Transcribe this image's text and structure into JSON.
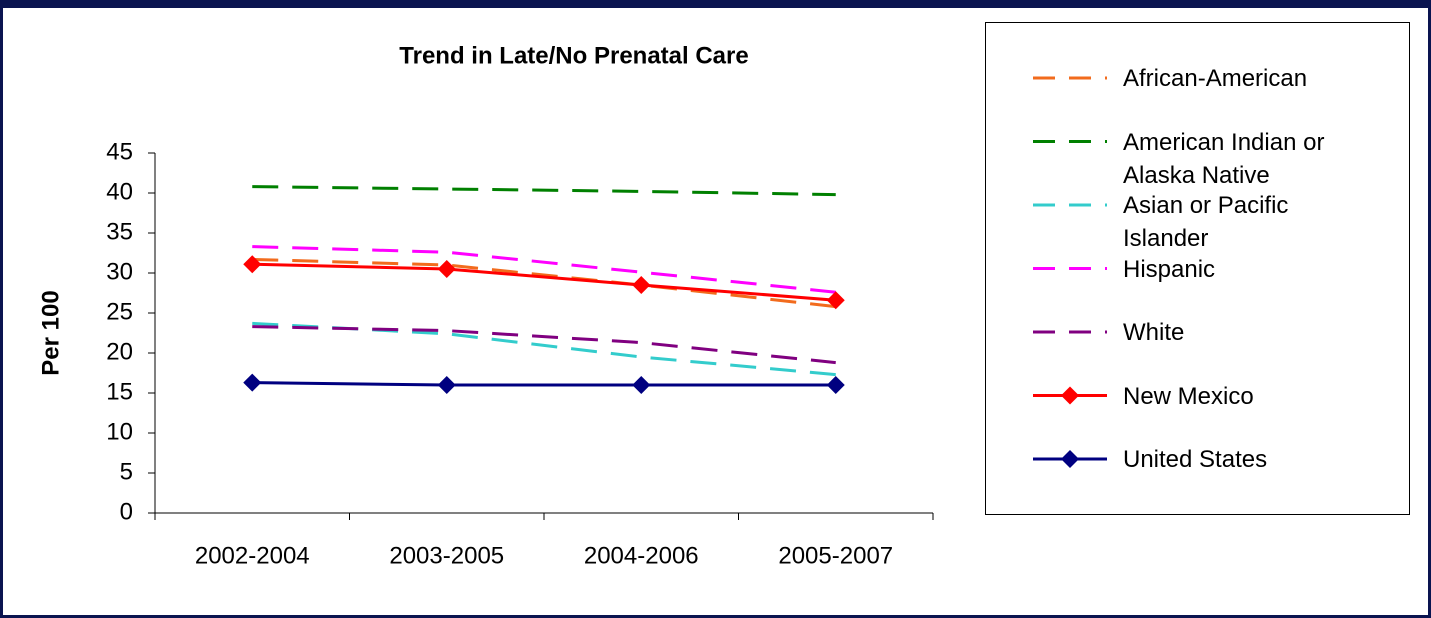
{
  "chart_data": {
    "type": "line",
    "title": "Trend in Late/No Prenatal Care",
    "y_label": "Per 100",
    "categories": [
      "2002-2004",
      "2003-2005",
      "2004-2006",
      "2005-2007"
    ],
    "ylim": [
      0,
      45
    ],
    "yticks": [
      0,
      5,
      10,
      15,
      20,
      25,
      30,
      35,
      40,
      45
    ],
    "grid": false,
    "series": [
      {
        "name": "African-American",
        "color": "#f26b1d",
        "dashed": true,
        "marker": "none",
        "values": [
          31.7,
          31.0,
          28.5,
          25.8
        ]
      },
      {
        "name": "American Indian or Alaska Native",
        "color": "#008000",
        "dashed": true,
        "marker": "none",
        "values": [
          40.8,
          40.5,
          40.2,
          39.8
        ]
      },
      {
        "name": "Asian or Pacific Islander",
        "color": "#33cccc",
        "dashed": true,
        "marker": "none",
        "values": [
          23.7,
          22.4,
          19.5,
          17.3
        ]
      },
      {
        "name": "Hispanic",
        "color": "#ff00ff",
        "dashed": true,
        "marker": "none",
        "values": [
          33.3,
          32.6,
          30.1,
          27.6
        ]
      },
      {
        "name": "White",
        "color": "#800080",
        "dashed": true,
        "marker": "none",
        "values": [
          23.3,
          22.8,
          21.3,
          18.8
        ]
      },
      {
        "name": "New Mexico",
        "color": "#ff0000",
        "dashed": false,
        "marker": "diamond",
        "values": [
          31.1,
          30.5,
          28.5,
          26.6
        ]
      },
      {
        "name": "United States",
        "color": "#000080",
        "dashed": false,
        "marker": "diamond",
        "values": [
          16.3,
          16.0,
          16.0,
          16.0
        ]
      }
    ]
  }
}
